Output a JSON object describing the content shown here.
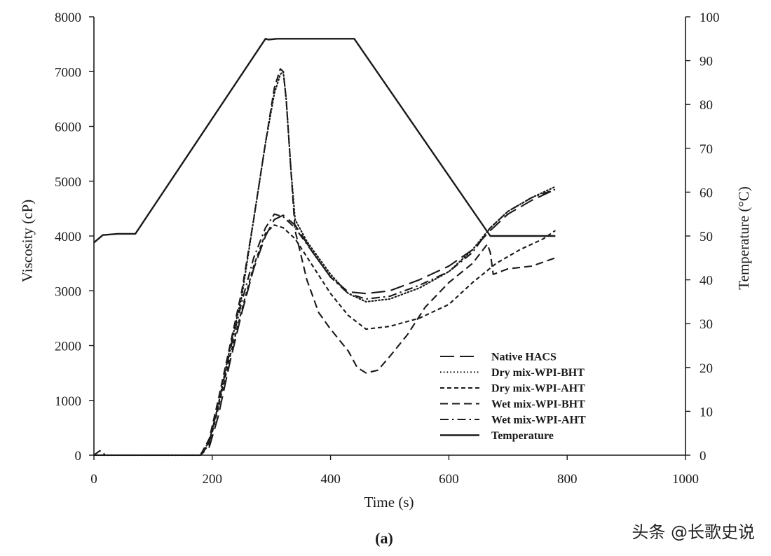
{
  "chart_data": {
    "type": "line",
    "panel_label": "(a)",
    "xlabel": "Time (s)",
    "ylabel_left": "Viscosity (cP)",
    "ylabel_right": "Temperature (°C)",
    "xlim": [
      0,
      1000
    ],
    "ylim_left": [
      0,
      8000
    ],
    "ylim_right": [
      0,
      100
    ],
    "x_ticks": [
      0,
      200,
      400,
      600,
      800,
      1000
    ],
    "y_ticks_left": [
      0,
      1000,
      2000,
      3000,
      4000,
      5000,
      6000,
      7000,
      8000
    ],
    "y_ticks_right": [
      0,
      10,
      20,
      30,
      40,
      50,
      60,
      70,
      80,
      90,
      100
    ],
    "legend_position": "lower-right",
    "series": [
      {
        "name": "Native HACS",
        "axis": "left",
        "dash": "long-dash",
        "points": [
          [
            0,
            0
          ],
          [
            180,
            0
          ],
          [
            195,
            150
          ],
          [
            210,
            700
          ],
          [
            230,
            1700
          ],
          [
            250,
            2600
          ],
          [
            270,
            3400
          ],
          [
            290,
            4000
          ],
          [
            305,
            4300
          ],
          [
            320,
            4380
          ],
          [
            340,
            4200
          ],
          [
            370,
            3700
          ],
          [
            400,
            3250
          ],
          [
            430,
            2980
          ],
          [
            460,
            2950
          ],
          [
            500,
            3000
          ],
          [
            550,
            3200
          ],
          [
            600,
            3450
          ],
          [
            640,
            3750
          ],
          [
            670,
            4100
          ],
          [
            700,
            4400
          ],
          [
            740,
            4650
          ],
          [
            780,
            4850
          ]
        ]
      },
      {
        "name": "Dry mix-WPI-BHT",
        "axis": "left",
        "dash": "dotted",
        "points": [
          [
            0,
            0
          ],
          [
            180,
            0
          ],
          [
            195,
            250
          ],
          [
            210,
            900
          ],
          [
            230,
            1950
          ],
          [
            250,
            2900
          ],
          [
            270,
            4300
          ],
          [
            290,
            5700
          ],
          [
            305,
            6600
          ],
          [
            315,
            6950
          ],
          [
            320,
            7000
          ],
          [
            325,
            6500
          ],
          [
            333,
            5200
          ],
          [
            340,
            4300
          ],
          [
            360,
            3900
          ],
          [
            400,
            3300
          ],
          [
            430,
            2950
          ],
          [
            460,
            2800
          ],
          [
            500,
            2850
          ],
          [
            550,
            3050
          ],
          [
            600,
            3350
          ],
          [
            640,
            3750
          ],
          [
            670,
            4150
          ],
          [
            700,
            4450
          ],
          [
            740,
            4700
          ],
          [
            780,
            4900
          ]
        ]
      },
      {
        "name": "Dry mix-WPI-AHT",
        "axis": "left",
        "dash": "short-dash",
        "points": [
          [
            0,
            0
          ],
          [
            180,
            0
          ],
          [
            195,
            200
          ],
          [
            210,
            850
          ],
          [
            230,
            1800
          ],
          [
            250,
            2650
          ],
          [
            270,
            3450
          ],
          [
            290,
            4050
          ],
          [
            305,
            4200
          ],
          [
            320,
            4150
          ],
          [
            340,
            3950
          ],
          [
            370,
            3450
          ],
          [
            400,
            2950
          ],
          [
            430,
            2550
          ],
          [
            460,
            2300
          ],
          [
            500,
            2350
          ],
          [
            550,
            2500
          ],
          [
            600,
            2750
          ],
          [
            640,
            3150
          ],
          [
            680,
            3500
          ],
          [
            720,
            3750
          ],
          [
            760,
            3950
          ],
          [
            780,
            4100
          ]
        ]
      },
      {
        "name": "Wet mix-WPI-BHT",
        "axis": "left",
        "dash": "medium-dash",
        "points": [
          [
            0,
            0
          ],
          [
            180,
            0
          ],
          [
            195,
            300
          ],
          [
            210,
            1000
          ],
          [
            230,
            2000
          ],
          [
            250,
            3000
          ],
          [
            270,
            4300
          ],
          [
            290,
            5700
          ],
          [
            305,
            6700
          ],
          [
            315,
            7050
          ],
          [
            320,
            7000
          ],
          [
            325,
            6500
          ],
          [
            333,
            5200
          ],
          [
            340,
            4100
          ],
          [
            360,
            3200
          ],
          [
            380,
            2600
          ],
          [
            400,
            2300
          ],
          [
            430,
            1900
          ],
          [
            445,
            1600
          ],
          [
            460,
            1500
          ],
          [
            480,
            1550
          ],
          [
            500,
            1800
          ],
          [
            530,
            2200
          ],
          [
            560,
            2700
          ],
          [
            600,
            3150
          ],
          [
            640,
            3500
          ],
          [
            665,
            3850
          ],
          [
            670,
            3700
          ],
          [
            675,
            3300
          ],
          [
            700,
            3400
          ],
          [
            740,
            3450
          ],
          [
            780,
            3600
          ]
        ]
      },
      {
        "name": "Wet mix-WPI-AHT",
        "axis": "left",
        "dash": "dash-dot",
        "points": [
          [
            0,
            0
          ],
          [
            10,
            80
          ],
          [
            20,
            0
          ],
          [
            180,
            0
          ],
          [
            195,
            250
          ],
          [
            210,
            900
          ],
          [
            230,
            1900
          ],
          [
            250,
            2800
          ],
          [
            270,
            3600
          ],
          [
            290,
            4150
          ],
          [
            305,
            4400
          ],
          [
            320,
            4350
          ],
          [
            340,
            4150
          ],
          [
            370,
            3700
          ],
          [
            400,
            3250
          ],
          [
            430,
            2950
          ],
          [
            460,
            2850
          ],
          [
            500,
            2900
          ],
          [
            550,
            3100
          ],
          [
            600,
            3350
          ],
          [
            640,
            3700
          ],
          [
            670,
            4150
          ],
          [
            700,
            4450
          ],
          [
            740,
            4700
          ],
          [
            780,
            4850
          ]
        ]
      },
      {
        "name": "Temperature",
        "axis": "right",
        "dash": "solid",
        "points": [
          [
            0,
            48.5
          ],
          [
            15,
            50.2
          ],
          [
            40,
            50.5
          ],
          [
            70,
            50.5
          ],
          [
            290,
            95
          ],
          [
            295,
            94.8
          ],
          [
            310,
            95
          ],
          [
            440,
            95
          ],
          [
            670,
            50
          ],
          [
            780,
            50
          ]
        ]
      }
    ]
  },
  "watermark": "头条 @长歌史说"
}
